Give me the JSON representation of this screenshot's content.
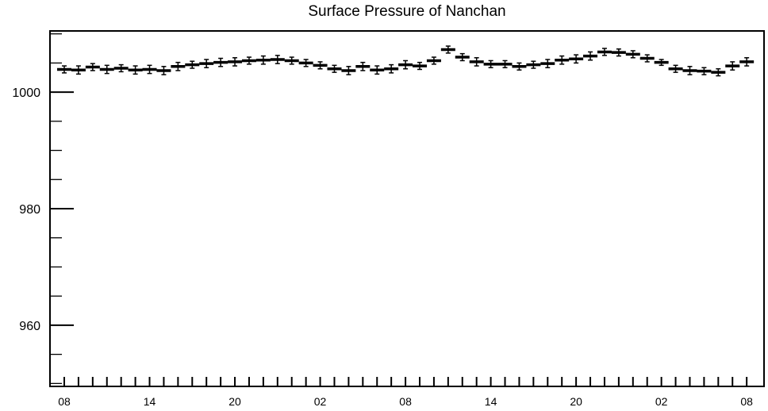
{
  "chart_data": {
    "type": "scatter",
    "title": "Surface Pressure of Nanchan",
    "xlabel": "",
    "ylabel": "",
    "ylim": [
      949.5,
      1010.5
    ],
    "y_ticks_major": [
      960,
      980,
      1000
    ],
    "y_ticks_minor_step": 5,
    "x_tick_labels": [
      "08",
      "14",
      "20",
      "02",
      "08",
      "14",
      "20",
      "02",
      "08"
    ],
    "x_tick_label_indices": [
      0,
      6,
      12,
      18,
      24,
      30,
      36,
      42,
      48
    ],
    "x_count": 49,
    "series": [
      {
        "marker": "horizontal-bar-with-error",
        "values": [
          1003.9,
          1003.8,
          1004.3,
          1003.9,
          1004.1,
          1003.8,
          1003.9,
          1003.7,
          1004.4,
          1004.7,
          1004.9,
          1005.1,
          1005.2,
          1005.4,
          1005.5,
          1005.6,
          1005.4,
          1005.0,
          1004.6,
          1004.0,
          1003.7,
          1004.4,
          1003.8,
          1004.0,
          1004.7,
          1004.5,
          1005.4,
          1007.3,
          1006.0,
          1005.2,
          1004.8,
          1004.8,
          1004.4,
          1004.7,
          1004.9,
          1005.5,
          1005.7,
          1006.2,
          1006.9,
          1006.8,
          1006.5,
          1005.8,
          1005.1,
          1004.0,
          1003.7,
          1003.6,
          1003.4,
          1004.5,
          1005.2
        ],
        "errors": [
          0.6,
          0.7,
          0.6,
          0.7,
          0.6,
          0.7,
          0.7,
          0.7,
          0.7,
          0.6,
          0.7,
          0.7,
          0.7,
          0.6,
          0.7,
          0.7,
          0.6,
          0.6,
          0.6,
          0.6,
          0.7,
          0.7,
          0.7,
          0.7,
          0.7,
          0.6,
          0.6,
          0.6,
          0.6,
          0.7,
          0.6,
          0.6,
          0.6,
          0.6,
          0.7,
          0.7,
          0.7,
          0.7,
          0.6,
          0.6,
          0.6,
          0.6,
          0.5,
          0.6,
          0.7,
          0.6,
          0.6,
          0.7,
          0.7
        ]
      }
    ]
  }
}
